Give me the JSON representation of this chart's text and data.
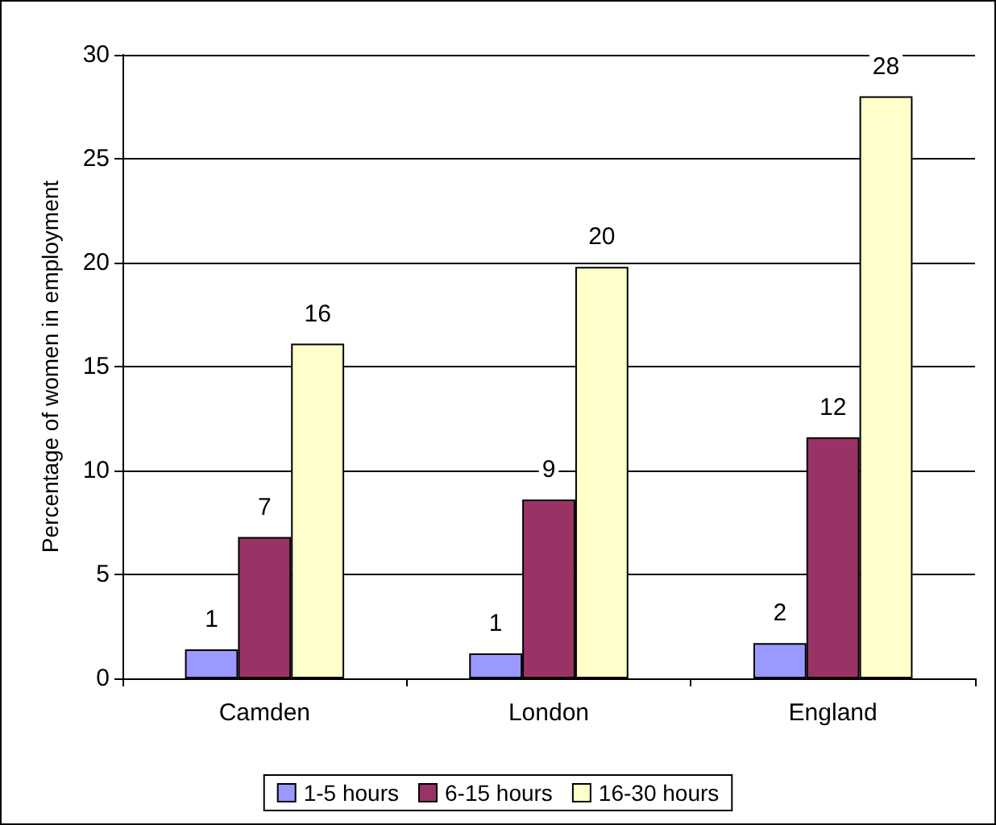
{
  "chart_data": {
    "type": "bar",
    "ylabel": "Percentage of women in employment",
    "categories": [
      "Camden",
      "London",
      "England"
    ],
    "series": [
      {
        "name": "1-5 hours",
        "color": "#9999ff",
        "values": [
          1.4,
          1.2,
          1.7
        ],
        "value_labels": [
          "1",
          "1",
          "2"
        ]
      },
      {
        "name": "6-15 hours",
        "color": "#993366",
        "values": [
          6.8,
          8.6,
          11.6
        ],
        "value_labels": [
          "7",
          "9",
          "12"
        ]
      },
      {
        "name": "16-30 hours",
        "color": "#ffffcc",
        "values": [
          16.1,
          19.8,
          28.0
        ],
        "value_labels": [
          "16",
          "20",
          "28"
        ]
      }
    ],
    "ylim": [
      0,
      30
    ],
    "yticks": [
      0,
      5,
      10,
      15,
      20,
      25,
      30
    ],
    "grid": "y",
    "legend": "bottom"
  }
}
